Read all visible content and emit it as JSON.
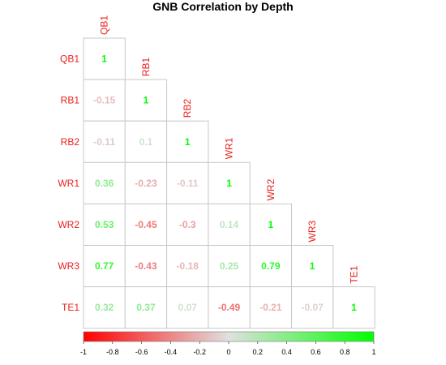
{
  "chart_data": {
    "type": "heatmap",
    "title": "GNB Correlation by Depth",
    "variables": [
      "QB1",
      "RB1",
      "RB2",
      "WR1",
      "WR2",
      "WR3",
      "TE1"
    ],
    "matrix_lower": [
      [
        1
      ],
      [
        -0.15,
        1
      ],
      [
        -0.11,
        0.1,
        1
      ],
      [
        0.36,
        -0.23,
        -0.11,
        1
      ],
      [
        0.53,
        -0.45,
        -0.3,
        0.14,
        1
      ],
      [
        0.77,
        -0.43,
        -0.18,
        0.25,
        0.79,
        1
      ],
      [
        0.32,
        0.37,
        0.07,
        -0.49,
        -0.21,
        -0.07,
        1
      ]
    ],
    "colorbar": {
      "range": [
        -1,
        1
      ],
      "ticks": [
        "-1",
        "-0.8",
        "-0.6",
        "-0.4",
        "-0.2",
        "0",
        "0.2",
        "0.4",
        "0.6",
        "0.8",
        "1"
      ],
      "colors": {
        "negative": "#ff0000",
        "zero": "#e0e0e0",
        "positive": "#00ff00"
      }
    },
    "label_color": "#e8201e",
    "grid_color": "#c8c8c8",
    "legend": "bottom"
  }
}
